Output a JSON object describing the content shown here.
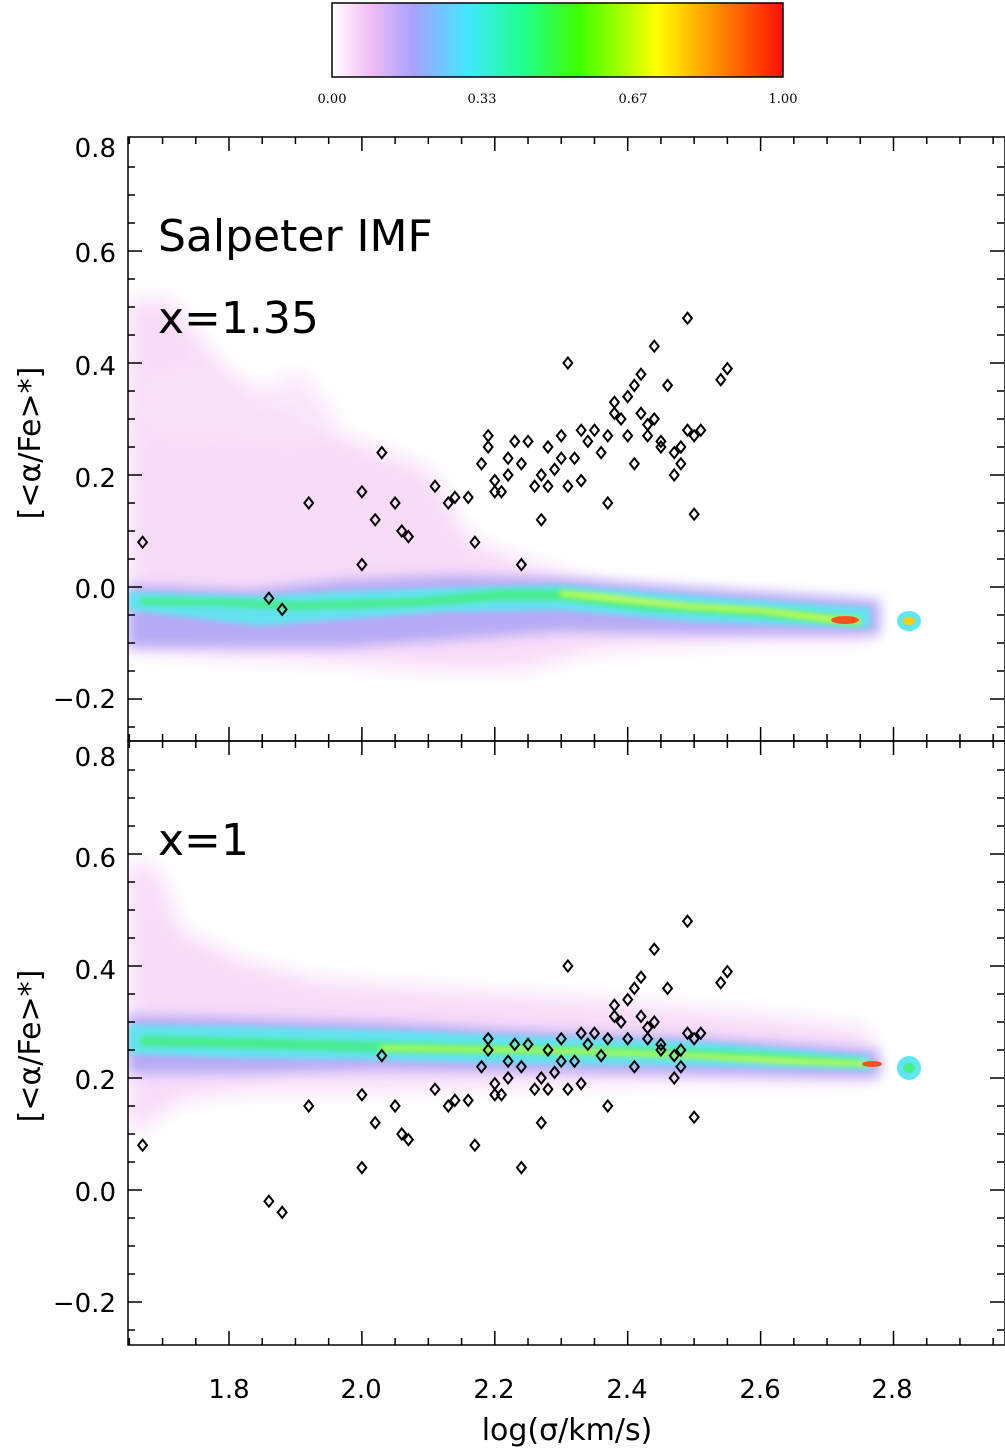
{
  "chart_data": [
    {
      "type": "heatmap",
      "panel": "top",
      "annotations": [
        "Salpeter IMF",
        "x=1.35"
      ],
      "ylabel": "[<α/Fe>*]",
      "xlim": [
        1.65,
        2.98
      ],
      "ylim": [
        -0.27,
        0.8
      ],
      "x_ticks": [
        "1.8",
        "2.0",
        "2.2",
        "2.4",
        "2.6",
        "2.8"
      ],
      "y_ticks": [
        "-0.2",
        "0.0",
        "0.2",
        "0.4",
        "0.6",
        "0.8"
      ],
      "ridge": [
        [
          1.67,
          -0.03
        ],
        [
          1.8,
          -0.03
        ],
        [
          1.95,
          -0.04
        ],
        [
          2.1,
          -0.035
        ],
        [
          2.2,
          -0.03
        ],
        [
          2.3,
          -0.02
        ],
        [
          2.4,
          -0.03
        ],
        [
          2.5,
          -0.04
        ],
        [
          2.6,
          -0.045
        ],
        [
          2.7,
          -0.05
        ],
        [
          2.75,
          -0.065
        ],
        [
          2.82,
          -0.065
        ]
      ],
      "scatter": [
        [
          1.67,
          0.08
        ],
        [
          1.86,
          -0.02
        ],
        [
          1.88,
          -0.04
        ],
        [
          1.92,
          0.15
        ],
        [
          2.0,
          0.04
        ],
        [
          2.0,
          0.17
        ],
        [
          2.02,
          0.12
        ],
        [
          2.03,
          0.24
        ],
        [
          2.05,
          0.15
        ],
        [
          2.06,
          0.1
        ],
        [
          2.07,
          0.09
        ],
        [
          2.11,
          0.18
        ],
        [
          2.13,
          0.15
        ],
        [
          2.14,
          0.16
        ],
        [
          2.16,
          0.16
        ],
        [
          2.17,
          0.08
        ],
        [
          2.18,
          0.22
        ],
        [
          2.19,
          0.25
        ],
        [
          2.19,
          0.27
        ],
        [
          2.2,
          0.19
        ],
        [
          2.2,
          0.17
        ],
        [
          2.21,
          0.17
        ],
        [
          2.22,
          0.2
        ],
        [
          2.22,
          0.23
        ],
        [
          2.23,
          0.26
        ],
        [
          2.24,
          0.22
        ],
        [
          2.24,
          0.04
        ],
        [
          2.25,
          0.26
        ],
        [
          2.26,
          0.18
        ],
        [
          2.27,
          0.2
        ],
        [
          2.27,
          0.12
        ],
        [
          2.28,
          0.25
        ],
        [
          2.28,
          0.18
        ],
        [
          2.29,
          0.21
        ],
        [
          2.3,
          0.23
        ],
        [
          2.3,
          0.27
        ],
        [
          2.31,
          0.4
        ],
        [
          2.31,
          0.18
        ],
        [
          2.32,
          0.23
        ],
        [
          2.33,
          0.19
        ],
        [
          2.33,
          0.28
        ],
        [
          2.34,
          0.26
        ],
        [
          2.35,
          0.28
        ],
        [
          2.36,
          0.24
        ],
        [
          2.37,
          0.15
        ],
        [
          2.37,
          0.27
        ],
        [
          2.38,
          0.33
        ],
        [
          2.38,
          0.31
        ],
        [
          2.39,
          0.3
        ],
        [
          2.4,
          0.34
        ],
        [
          2.4,
          0.27
        ],
        [
          2.41,
          0.36
        ],
        [
          2.41,
          0.22
        ],
        [
          2.42,
          0.31
        ],
        [
          2.42,
          0.38
        ],
        [
          2.43,
          0.29
        ],
        [
          2.43,
          0.27
        ],
        [
          2.44,
          0.3
        ],
        [
          2.44,
          0.43
        ],
        [
          2.45,
          0.25
        ],
        [
          2.45,
          0.26
        ],
        [
          2.46,
          0.36
        ],
        [
          2.47,
          0.24
        ],
        [
          2.47,
          0.2
        ],
        [
          2.48,
          0.25
        ],
        [
          2.48,
          0.22
        ],
        [
          2.49,
          0.28
        ],
        [
          2.49,
          0.48
        ],
        [
          2.5,
          0.27
        ],
        [
          2.5,
          0.13
        ],
        [
          2.51,
          0.28
        ],
        [
          2.54,
          0.37
        ],
        [
          2.55,
          0.39
        ]
      ]
    },
    {
      "type": "heatmap",
      "panel": "bottom",
      "annotations": [
        "x=1"
      ],
      "xlabel": "log(σ/km/s)",
      "ylabel": "[<α/Fe>*]",
      "xlim": [
        1.65,
        2.98
      ],
      "ylim": [
        -0.28,
        0.8
      ],
      "x_ticks": [
        "1.8",
        "2.0",
        "2.2",
        "2.4",
        "2.6",
        "2.8"
      ],
      "y_ticks": [
        "-0.2",
        "0.0",
        "0.2",
        "0.4",
        "0.6",
        "0.8"
      ],
      "ridge": [
        [
          1.67,
          0.26
        ],
        [
          1.8,
          0.26
        ],
        [
          1.95,
          0.265
        ],
        [
          2.1,
          0.25
        ],
        [
          2.2,
          0.24
        ],
        [
          2.3,
          0.245
        ],
        [
          2.4,
          0.25
        ],
        [
          2.5,
          0.24
        ],
        [
          2.6,
          0.235
        ],
        [
          2.7,
          0.23
        ],
        [
          2.78,
          0.225
        ],
        [
          2.82,
          0.22
        ]
      ],
      "scatter": "same observational points as top panel"
    }
  ],
  "colorbar": {
    "labels": [
      "0.00",
      "0.33",
      "0.67",
      "1.00"
    ],
    "colors": [
      "#ffffff",
      "#f0b8f0",
      "#9090ff",
      "#00ffff",
      "#00ff00",
      "#ffff00",
      "#ff8000",
      "#ff0000"
    ]
  },
  "text": {
    "top_annot1": "Salpeter IMF",
    "top_annot2": "x=1.35",
    "bottom_annot": "x=1",
    "ylabel": "[<α/Fe>*]",
    "xlabel": "log(σ/km/s)"
  }
}
